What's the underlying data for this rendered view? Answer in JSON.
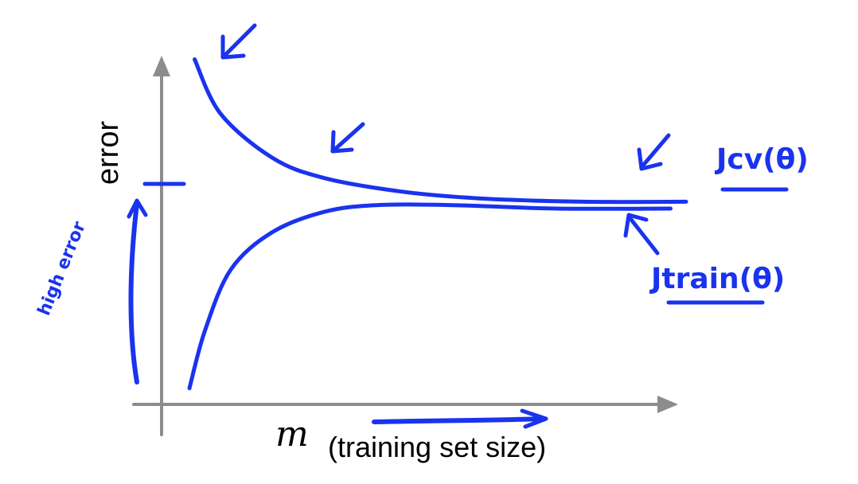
{
  "chart_data": {
    "type": "line",
    "title": "",
    "xlabel": "(training set size)",
    "xlabel_symbol": "m",
    "ylabel": "error",
    "grid": false,
    "legend": "none",
    "series": [
      {
        "name": "Jcv(θ)",
        "x": [
          0.05,
          0.1,
          0.2,
          0.3,
          0.45,
          0.6,
          0.8,
          1.0
        ],
        "y": [
          0.98,
          0.82,
          0.69,
          0.63,
          0.59,
          0.57,
          0.56,
          0.56
        ]
      },
      {
        "name": "Jtrain(θ)",
        "x": [
          0.04,
          0.07,
          0.12,
          0.2,
          0.3,
          0.4,
          0.55,
          0.75,
          0.97
        ],
        "y": [
          0.01,
          0.18,
          0.36,
          0.47,
          0.53,
          0.55,
          0.55,
          0.54,
          0.54
        ]
      }
    ],
    "annotations": [
      "high error"
    ],
    "colors": {
      "ink": "#1a33ee",
      "axis": "#8c8c8c"
    }
  }
}
